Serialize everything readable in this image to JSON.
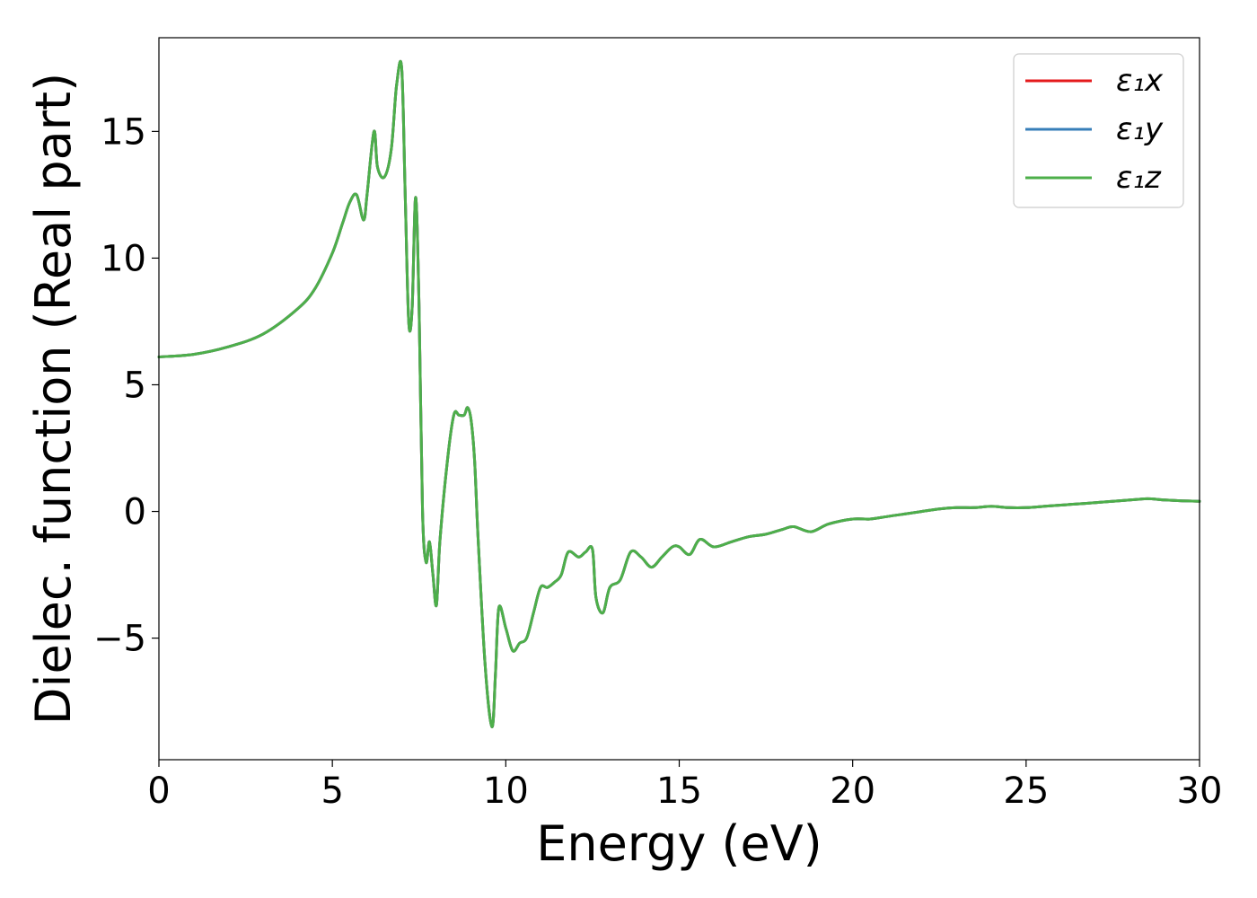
{
  "chart_data": {
    "type": "line",
    "xlabel": "Energy (eV)",
    "ylabel": "Dielec. function (Real part)",
    "xlim": [
      0,
      30
    ],
    "ylim": [
      -9.8,
      18.7
    ],
    "xticks": [
      0,
      5,
      10,
      15,
      20,
      25,
      30
    ],
    "yticks": [
      -5,
      0,
      5,
      10,
      15
    ],
    "ytick_labels": [
      "−5",
      "0",
      "5",
      "10",
      "15"
    ],
    "grid": false,
    "legend_position": "top-right",
    "series": [
      {
        "name": "ε₁x",
        "color": "#e41a1c"
      },
      {
        "name": "ε₁y",
        "color": "#377eb8"
      },
      {
        "name": "ε₁z",
        "color": "#4daf4a"
      }
    ],
    "x": [
      0,
      1,
      2,
      3,
      4,
      4.5,
      5,
      5.3,
      5.5,
      5.7,
      5.9,
      6.0,
      6.2,
      6.3,
      6.5,
      6.7,
      6.85,
      7.0,
      7.1,
      7.2,
      7.3,
      7.4,
      7.5,
      7.6,
      7.7,
      7.8,
      7.9,
      8.0,
      8.1,
      8.3,
      8.5,
      8.65,
      8.8,
      8.9,
      9.0,
      9.1,
      9.2,
      9.4,
      9.6,
      9.7,
      9.8,
      10.0,
      10.2,
      10.4,
      10.6,
      10.8,
      11.0,
      11.2,
      11.4,
      11.6,
      11.8,
      12.1,
      12.3,
      12.5,
      12.6,
      12.8,
      13.0,
      13.3,
      13.6,
      13.9,
      14.2,
      14.5,
      14.8,
      15.0,
      15.3,
      15.6,
      16.0,
      16.5,
      17.0,
      17.5,
      18.0,
      18.3,
      18.8,
      19.3,
      20.0,
      20.5,
      21.0,
      21.5,
      22.0,
      22.5,
      23.0,
      23.5,
      24.0,
      24.5,
      25.0,
      25.5,
      26.0,
      26.5,
      27.0,
      27.5,
      28.0,
      28.5,
      29.0,
      29.5,
      30.0
    ],
    "values": [
      6.1,
      6.2,
      6.5,
      7.0,
      8.0,
      8.8,
      10.2,
      11.4,
      12.2,
      12.5,
      11.5,
      12.5,
      15.0,
      13.6,
      13.2,
      14.3,
      16.8,
      17.5,
      12.5,
      7.5,
      8.0,
      12.4,
      8.0,
      0.0,
      -2.0,
      -1.2,
      -2.5,
      -3.7,
      -1.2,
      1.8,
      3.8,
      3.8,
      3.8,
      4.1,
      3.6,
      2.0,
      -1.0,
      -6.0,
      -8.5,
      -6.5,
      -3.8,
      -4.6,
      -5.5,
      -5.2,
      -5.0,
      -4.0,
      -3.0,
      -3.0,
      -2.8,
      -2.5,
      -1.6,
      -1.8,
      -1.6,
      -1.5,
      -3.4,
      -4.0,
      -3.0,
      -2.7,
      -1.6,
      -1.8,
      -2.2,
      -1.8,
      -1.4,
      -1.4,
      -1.7,
      -1.1,
      -1.4,
      -1.2,
      -1.0,
      -0.9,
      -0.7,
      -0.6,
      -0.8,
      -0.5,
      -0.3,
      -0.3,
      -0.2,
      -0.1,
      0.0,
      0.1,
      0.15,
      0.15,
      0.2,
      0.15,
      0.15,
      0.2,
      0.25,
      0.3,
      0.35,
      0.4,
      0.45,
      0.5,
      0.45,
      0.42,
      0.4
    ]
  }
}
